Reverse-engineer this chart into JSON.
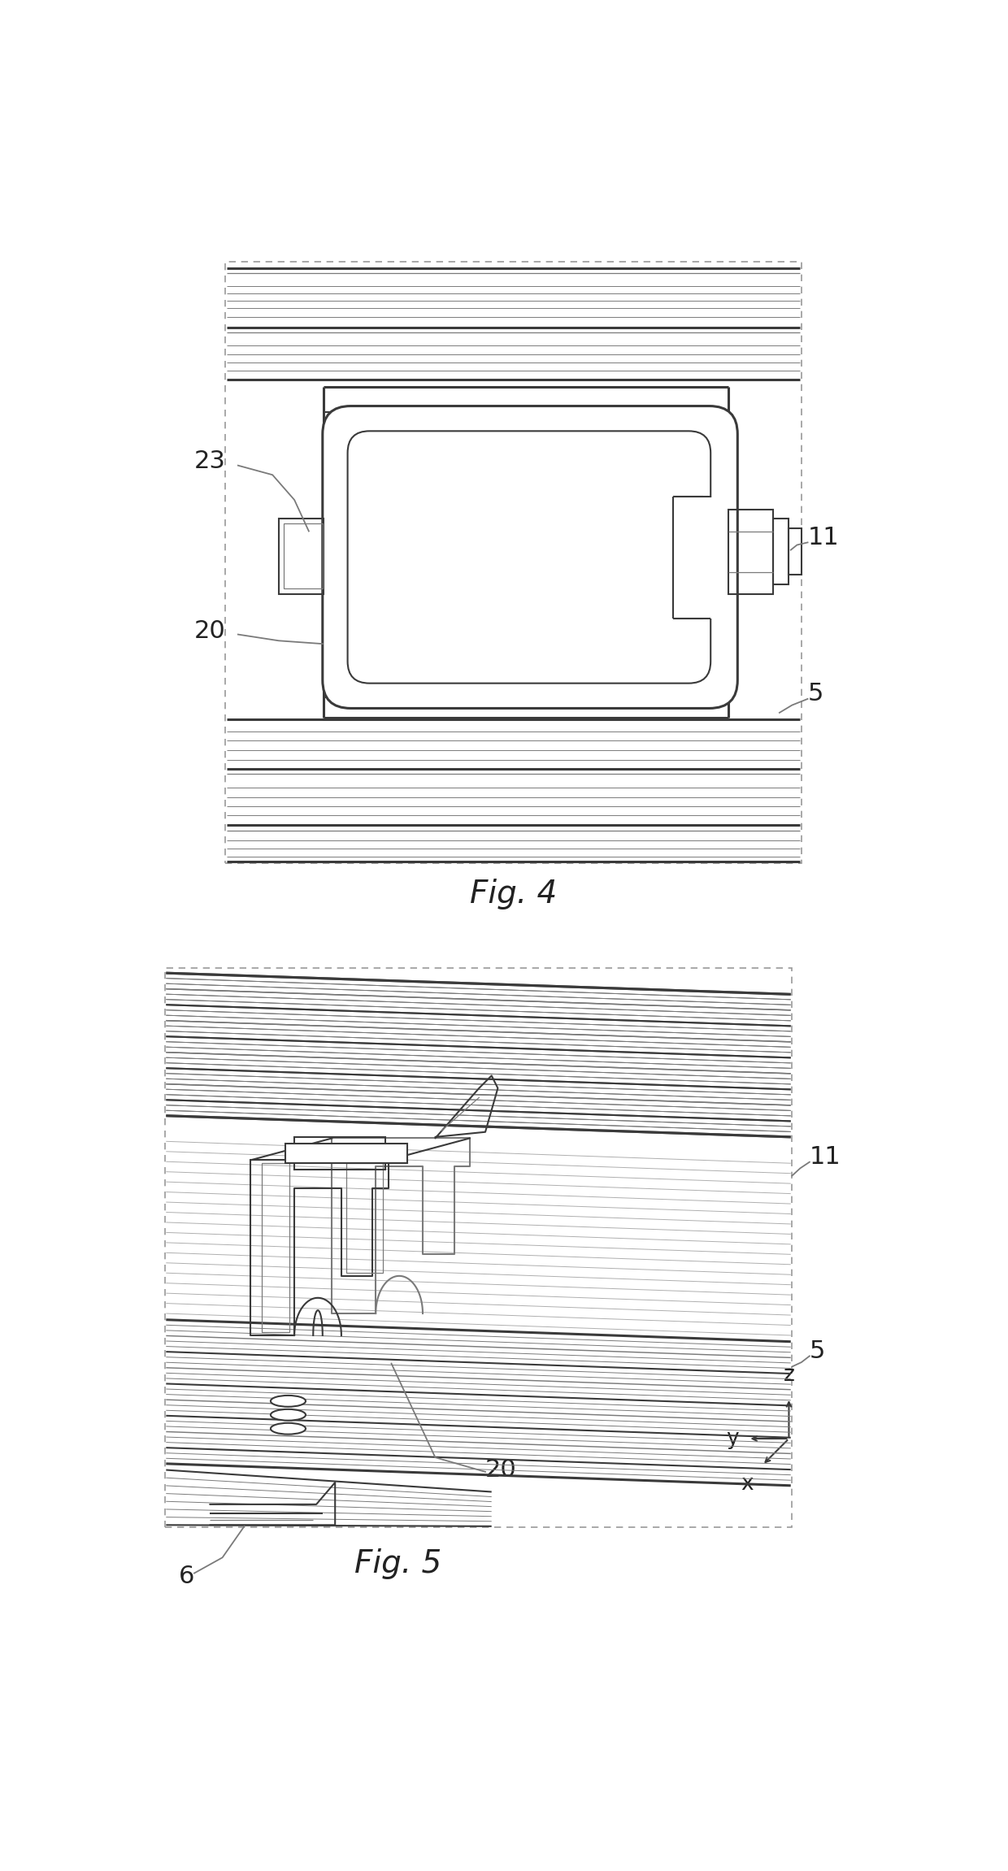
{
  "bg_color": "#ffffff",
  "line_color": "#3a3a3a",
  "gray_color": "#7a7a7a",
  "light_gray": "#aaaaaa",
  "fig_width": 12.4,
  "fig_height": 23.02,
  "fig4_label": "Fig. 4",
  "fig5_label": "Fig. 5",
  "label_23": "23",
  "label_20_fig4": "20",
  "label_11_fig4": "11",
  "label_5_fig4": "5",
  "label_6": "6",
  "label_11_fig5": "11",
  "label_5_fig5": "5",
  "label_20_fig5": "20",
  "axis_z": "z",
  "axis_y": "y",
  "axis_x": "x"
}
